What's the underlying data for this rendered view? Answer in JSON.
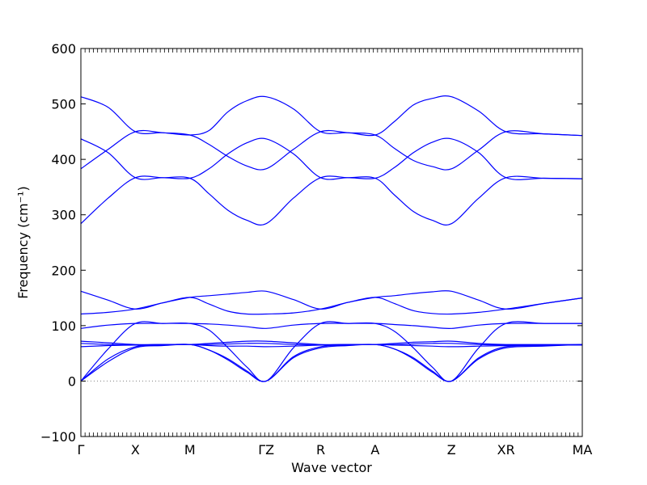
{
  "chart_data": {
    "type": "line",
    "title": "",
    "xlabel": "Wave vector",
    "ylabel": "Frequency (cm⁻¹)",
    "ylim": [
      -100,
      600
    ],
    "yticks": [
      -100,
      0,
      100,
      200,
      300,
      400,
      500,
      600
    ],
    "grid": false,
    "legend": "none",
    "line_color": "#0000ff",
    "zero_line_color": "#808080",
    "x_ticks": [
      {
        "label": "Γ",
        "pos": 0
      },
      {
        "label": "X",
        "pos": 1
      },
      {
        "label": "M",
        "pos": 2
      },
      {
        "label": "ΓZ",
        "pos": 3.4
      },
      {
        "label": "R",
        "pos": 4.4
      },
      {
        "label": "A",
        "pos": 5.4
      },
      {
        "label": "Z",
        "pos": 6.8
      },
      {
        "label": "XR",
        "pos": 7.8
      },
      {
        "label": "MA",
        "pos": 9.2
      }
    ],
    "path": {
      "x": [
        0,
        0.5,
        1,
        1.5,
        2,
        2.35,
        2.7,
        3.05,
        3.4,
        3.9,
        4.4,
        4.9,
        5.4,
        5.75,
        6.1,
        6.45,
        6.8,
        7.3,
        7.8,
        8.5,
        9.2
      ],
      "note_segments": "Γ-X-M-Γ | Z-R-A-Z | X-R | M-A"
    },
    "series": [
      {
        "values": [
          513,
          494,
          450,
          448,
          444,
          452,
          486,
          506,
          513,
          491,
          450,
          448,
          444,
          468,
          498,
          510,
          513,
          487,
          450,
          446,
          443
        ]
      },
      {
        "values": [
          437,
          412,
          367,
          367,
          366,
          383,
          410,
          430,
          437,
          410,
          367,
          367,
          366,
          385,
          412,
          431,
          437,
          412,
          367,
          366,
          365
        ]
      },
      {
        "values": [
          383,
          418,
          450,
          448,
          444,
          427,
          405,
          388,
          383,
          418,
          450,
          448,
          444,
          420,
          398,
          387,
          383,
          417,
          450,
          446,
          443
        ]
      },
      {
        "values": [
          284,
          330,
          367,
          367,
          366,
          338,
          308,
          290,
          284,
          330,
          367,
          367,
          366,
          336,
          306,
          290,
          284,
          330,
          367,
          366,
          365
        ]
      },
      {
        "values": [
          162,
          146,
          130,
          141,
          151,
          154,
          157,
          160,
          162,
          147,
          130,
          142,
          151,
          154,
          158,
          161,
          162,
          146,
          130,
          140,
          150
        ]
      },
      {
        "values": [
          121,
          124,
          130,
          141,
          151,
          139,
          126,
          121,
          121,
          123,
          130,
          142,
          151,
          140,
          127,
          122,
          121,
          124,
          130,
          140,
          150
        ]
      },
      {
        "values": [
          95,
          101,
          104,
          104,
          104,
          103,
          101,
          98,
          95,
          101,
          104,
          104,
          104,
          102,
          100,
          97,
          95,
          101,
          104,
          104,
          104
        ]
      },
      {
        "values": [
          72,
          69,
          66,
          66,
          66,
          68,
          70,
          72,
          72,
          69,
          66,
          66,
          66,
          68,
          70,
          71,
          72,
          68,
          66,
          66,
          66
        ]
      },
      {
        "values": [
          68,
          66,
          65,
          66,
          66,
          66,
          67,
          68,
          68,
          66,
          65,
          66,
          66,
          66,
          67,
          68,
          68,
          66,
          65,
          65,
          65
        ]
      },
      {
        "values": [
          62,
          64,
          65,
          66,
          66,
          64,
          63,
          63,
          62,
          63,
          65,
          66,
          66,
          65,
          64,
          63,
          62,
          63,
          64,
          65,
          65
        ]
      },
      {
        "values": [
          0,
          35,
          60,
          64,
          66,
          56,
          38,
          16,
          0,
          42,
          60,
          64,
          66,
          58,
          40,
          16,
          0,
          40,
          60,
          63,
          66
        ]
      },
      {
        "values": [
          0,
          40,
          62,
          65,
          66,
          56,
          40,
          18,
          0,
          44,
          62,
          65,
          66,
          58,
          42,
          18,
          0,
          42,
          62,
          64,
          66
        ]
      },
      {
        "values": [
          0,
          58,
          104,
          104,
          104,
          92,
          60,
          25,
          0,
          60,
          104,
          104,
          104,
          90,
          60,
          25,
          0,
          60,
          104,
          104,
          104
        ]
      }
    ]
  }
}
